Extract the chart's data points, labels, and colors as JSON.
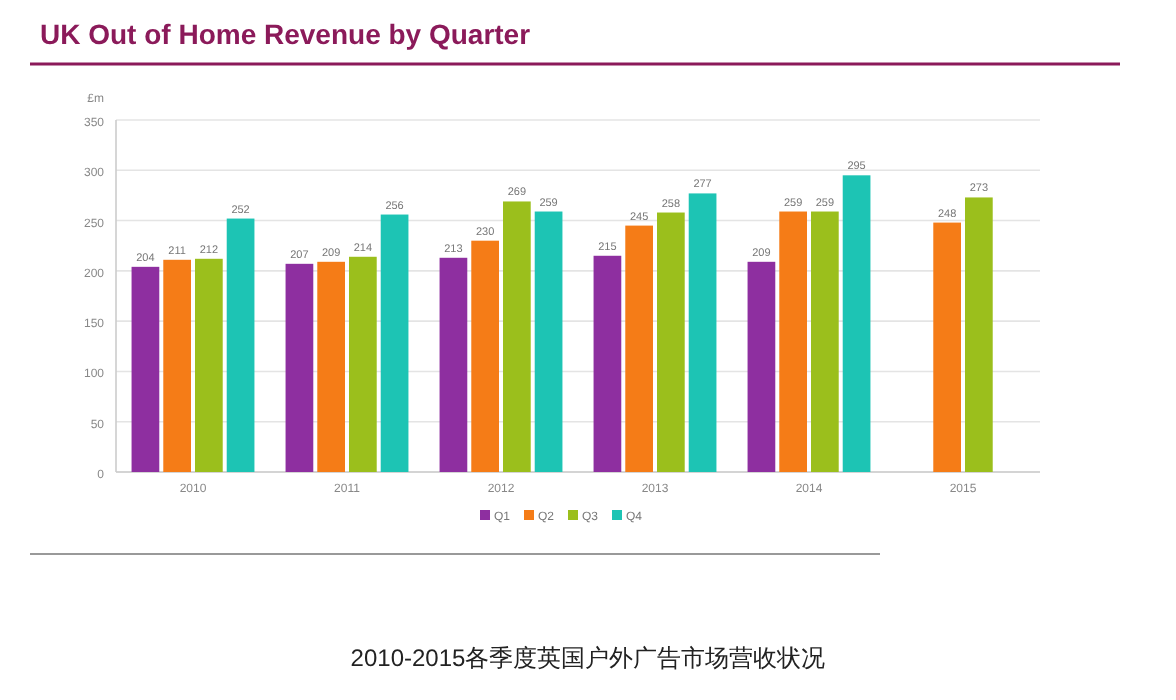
{
  "chart_data": {
    "type": "bar",
    "title": "UK Out of Home Revenue by Quarter",
    "ylabel": "£m",
    "categories": [
      "2010",
      "2011",
      "2012",
      "2013",
      "2014",
      "2015"
    ],
    "series": [
      {
        "name": "Q1",
        "color": "#8e2fa0",
        "values": [
          204,
          207,
          213,
          215,
          209,
          null
        ]
      },
      {
        "name": "Q2",
        "color": "#f57c17",
        "values": [
          211,
          209,
          230,
          245,
          259,
          248
        ]
      },
      {
        "name": "Q3",
        "color": "#9bbf1c",
        "values": [
          212,
          214,
          269,
          258,
          259,
          273
        ]
      },
      {
        "name": "Q4",
        "color": "#1dc4b4",
        "values": [
          252,
          256,
          259,
          277,
          295,
          null
        ]
      }
    ],
    "ylim": [
      0,
      350
    ],
    "yticks": [
      0,
      50,
      100,
      150,
      200,
      250,
      300,
      350
    ],
    "grid": "y",
    "legend": "bottom",
    "data_labels": true,
    "annotations": [
      "2010-2015各季度英国户外广告市场营收状况"
    ]
  }
}
